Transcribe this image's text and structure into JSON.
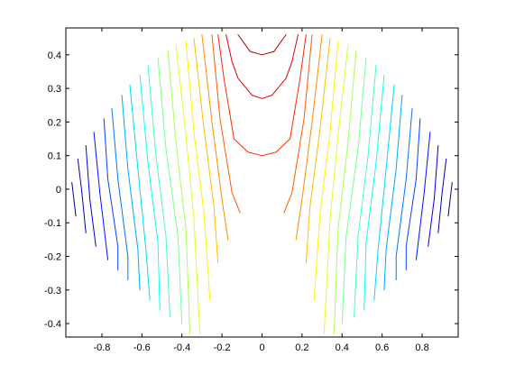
{
  "chart_data": {
    "type": "contour",
    "title": "",
    "xlabel": "",
    "ylabel": "",
    "xlim": [
      -0.98,
      0.98
    ],
    "ylim": [
      -0.44,
      0.48
    ],
    "grid": false,
    "box": true,
    "colormap": "jet",
    "xticks": [
      -0.8,
      -0.6,
      -0.4,
      -0.2,
      0,
      0.2,
      0.4,
      0.6,
      0.8
    ],
    "xtick_labels": [
      "-0.8",
      "-0.6",
      "-0.4",
      "-0.2",
      "0",
      "0.2",
      "0.4",
      "0.6",
      "0.8"
    ],
    "yticks": [
      0.4,
      0.3,
      0.2,
      0.1,
      0,
      -0.1,
      -0.2,
      -0.3,
      -0.4
    ],
    "ytick_labels": [
      "0.4",
      "0.3",
      "0.2",
      "0.1",
      "0",
      "-0.1",
      "-0.2",
      "-0.3",
      "-0.4"
    ],
    "level_colors": [
      "#000080",
      "#0000ad",
      "#0000e0",
      "#0012ff",
      "#0044ff",
      "#0076ff",
      "#00a8ff",
      "#00daff",
      "#12fff0",
      "#44ffbe",
      "#76ff8c",
      "#a8ff5a",
      "#daff28",
      "#fff000",
      "#ffbe00",
      "#ff8c00",
      "#ff5a00",
      "#ff2800",
      "#e00000",
      "#ad0000",
      "#800000"
    ],
    "contours": [
      {
        "level_index": 0,
        "points": [
          [
            -0.95,
            0.02
          ],
          [
            -0.93,
            -0.08
          ]
        ]
      },
      {
        "level_index": 0,
        "points": [
          [
            0.95,
            0.02
          ],
          [
            0.93,
            -0.08
          ]
        ]
      },
      {
        "level_index": 1,
        "points": [
          [
            -0.92,
            0.09
          ],
          [
            -0.9,
            -0.01
          ],
          [
            -0.88,
            -0.13
          ]
        ]
      },
      {
        "level_index": 1,
        "points": [
          [
            0.92,
            0.09
          ],
          [
            0.9,
            -0.01
          ],
          [
            0.88,
            -0.13
          ]
        ]
      },
      {
        "level_index": 2,
        "points": [
          [
            -0.88,
            0.13
          ],
          [
            -0.86,
            -0.03
          ],
          [
            -0.83,
            -0.17
          ]
        ]
      },
      {
        "level_index": 2,
        "points": [
          [
            0.88,
            0.13
          ],
          [
            0.86,
            -0.03
          ],
          [
            0.83,
            -0.17
          ]
        ]
      },
      {
        "level_index": 3,
        "points": [
          [
            -0.84,
            0.17
          ],
          [
            -0.81,
            -0.01
          ],
          [
            -0.77,
            -0.21
          ]
        ]
      },
      {
        "level_index": 3,
        "points": [
          [
            0.84,
            0.17
          ],
          [
            0.81,
            -0.01
          ],
          [
            0.77,
            -0.21
          ]
        ]
      },
      {
        "level_index": 4,
        "points": [
          [
            -0.79,
            0.21
          ],
          [
            -0.77,
            0.03
          ],
          [
            -0.72,
            -0.17
          ],
          [
            -0.72,
            -0.24
          ]
        ]
      },
      {
        "level_index": 4,
        "points": [
          [
            0.79,
            0.21
          ],
          [
            0.77,
            0.03
          ],
          [
            0.72,
            -0.17
          ],
          [
            0.72,
            -0.24
          ]
        ]
      },
      {
        "level_index": 5,
        "points": [
          [
            -0.75,
            0.24
          ],
          [
            -0.72,
            0.03
          ],
          [
            -0.67,
            -0.2
          ],
          [
            -0.67,
            -0.27
          ]
        ]
      },
      {
        "level_index": 5,
        "points": [
          [
            0.75,
            0.24
          ],
          [
            0.72,
            0.03
          ],
          [
            0.67,
            -0.2
          ],
          [
            0.67,
            -0.27
          ]
        ]
      },
      {
        "level_index": 6,
        "points": [
          [
            -0.7,
            0.28
          ],
          [
            -0.67,
            0.06
          ],
          [
            -0.62,
            -0.18
          ],
          [
            -0.61,
            -0.3
          ]
        ]
      },
      {
        "level_index": 6,
        "points": [
          [
            0.7,
            0.28
          ],
          [
            0.67,
            0.06
          ],
          [
            0.62,
            -0.18
          ],
          [
            0.61,
            -0.3
          ]
        ]
      },
      {
        "level_index": 7,
        "points": [
          [
            -0.66,
            0.31
          ],
          [
            -0.62,
            0.06
          ],
          [
            -0.58,
            -0.18
          ],
          [
            -0.56,
            -0.33
          ]
        ]
      },
      {
        "level_index": 7,
        "points": [
          [
            0.66,
            0.31
          ],
          [
            0.62,
            0.06
          ],
          [
            0.58,
            -0.18
          ],
          [
            0.56,
            -0.33
          ]
        ]
      },
      {
        "level_index": 8,
        "points": [
          [
            -0.61,
            0.34
          ],
          [
            -0.57,
            0.08
          ],
          [
            -0.52,
            -0.16
          ],
          [
            -0.51,
            -0.36
          ]
        ]
      },
      {
        "level_index": 8,
        "points": [
          [
            0.61,
            0.34
          ],
          [
            0.57,
            0.08
          ],
          [
            0.52,
            -0.16
          ],
          [
            0.51,
            -0.36
          ]
        ]
      },
      {
        "level_index": 9,
        "points": [
          [
            -0.57,
            0.37
          ],
          [
            -0.53,
            0.1
          ],
          [
            -0.48,
            -0.14
          ],
          [
            -0.46,
            -0.38
          ]
        ]
      },
      {
        "level_index": 9,
        "points": [
          [
            0.57,
            0.37
          ],
          [
            0.53,
            0.1
          ],
          [
            0.48,
            -0.14
          ],
          [
            0.46,
            -0.38
          ]
        ]
      },
      {
        "level_index": 10,
        "points": [
          [
            -0.52,
            0.39
          ],
          [
            -0.48,
            0.12
          ],
          [
            -0.42,
            -0.14
          ],
          [
            -0.4,
            -0.4
          ]
        ]
      },
      {
        "level_index": 10,
        "points": [
          [
            0.52,
            0.39
          ],
          [
            0.48,
            0.12
          ],
          [
            0.42,
            -0.14
          ],
          [
            0.4,
            -0.4
          ]
        ]
      },
      {
        "level_index": 11,
        "points": [
          [
            -0.47,
            0.41
          ],
          [
            -0.43,
            0.14
          ],
          [
            -0.38,
            -0.12
          ],
          [
            -0.36,
            -0.43
          ]
        ]
      },
      {
        "level_index": 11,
        "points": [
          [
            0.47,
            0.41
          ],
          [
            0.43,
            0.14
          ],
          [
            0.38,
            -0.12
          ],
          [
            0.36,
            -0.43
          ]
        ]
      },
      {
        "level_index": 12,
        "points": [
          [
            -0.43,
            0.43
          ],
          [
            -0.38,
            0.16
          ],
          [
            -0.34,
            -0.09
          ],
          [
            -0.31,
            -0.43
          ]
        ]
      },
      {
        "level_index": 12,
        "points": [
          [
            0.43,
            0.43
          ],
          [
            0.38,
            0.16
          ],
          [
            0.34,
            -0.09
          ],
          [
            0.31,
            -0.43
          ]
        ]
      },
      {
        "level_index": 13,
        "points": [
          [
            -0.38,
            0.44
          ],
          [
            -0.34,
            0.17
          ],
          [
            -0.29,
            -0.07
          ],
          [
            -0.26,
            -0.33
          ]
        ]
      },
      {
        "level_index": 13,
        "points": [
          [
            0.38,
            0.44
          ],
          [
            0.34,
            0.17
          ],
          [
            0.29,
            -0.07
          ],
          [
            0.26,
            -0.33
          ]
        ]
      },
      {
        "level_index": 14,
        "points": [
          [
            -0.34,
            0.45
          ],
          [
            -0.29,
            0.18
          ],
          [
            -0.24,
            -0.05
          ],
          [
            -0.22,
            -0.22
          ]
        ]
      },
      {
        "level_index": 14,
        "points": [
          [
            0.34,
            0.45
          ],
          [
            0.29,
            0.18
          ],
          [
            0.24,
            -0.05
          ],
          [
            0.22,
            -0.22
          ]
        ]
      },
      {
        "level_index": 15,
        "points": [
          [
            -0.3,
            0.46
          ],
          [
            -0.25,
            0.2
          ],
          [
            -0.2,
            -0.03
          ],
          [
            -0.17,
            -0.15
          ]
        ]
      },
      {
        "level_index": 15,
        "points": [
          [
            0.3,
            0.46
          ],
          [
            0.25,
            0.2
          ],
          [
            0.2,
            -0.03
          ],
          [
            0.17,
            -0.15
          ]
        ]
      },
      {
        "level_index": 16,
        "points": [
          [
            -0.25,
            0.46
          ],
          [
            -0.21,
            0.21
          ],
          [
            -0.15,
            -0.01
          ],
          [
            -0.11,
            -0.07
          ]
        ]
      },
      {
        "level_index": 16,
        "points": [
          [
            0.25,
            0.46
          ],
          [
            0.21,
            0.21
          ],
          [
            0.15,
            -0.01
          ],
          [
            0.11,
            -0.07
          ]
        ]
      },
      {
        "level_index": 17,
        "points": [
          [
            -0.22,
            0.46
          ],
          [
            -0.19,
            0.33
          ],
          [
            -0.14,
            0.15
          ],
          [
            -0.07,
            0.11
          ],
          [
            0,
            0.1
          ],
          [
            0.07,
            0.11
          ],
          [
            0.14,
            0.15
          ],
          [
            0.19,
            0.33
          ],
          [
            0.22,
            0.46
          ]
        ]
      },
      {
        "level_index": 18,
        "points": [
          [
            -0.18,
            0.46
          ],
          [
            -0.15,
            0.38
          ],
          [
            -0.12,
            0.33
          ],
          [
            -0.05,
            0.28
          ],
          [
            0,
            0.27
          ],
          [
            0.05,
            0.28
          ],
          [
            0.12,
            0.33
          ],
          [
            0.15,
            0.38
          ],
          [
            0.18,
            0.46
          ]
        ]
      },
      {
        "level_index": 19,
        "points": [
          [
            -0.12,
            0.46
          ],
          [
            -0.06,
            0.41
          ],
          [
            0,
            0.4
          ],
          [
            0.06,
            0.41
          ],
          [
            0.12,
            0.46
          ]
        ]
      }
    ]
  }
}
